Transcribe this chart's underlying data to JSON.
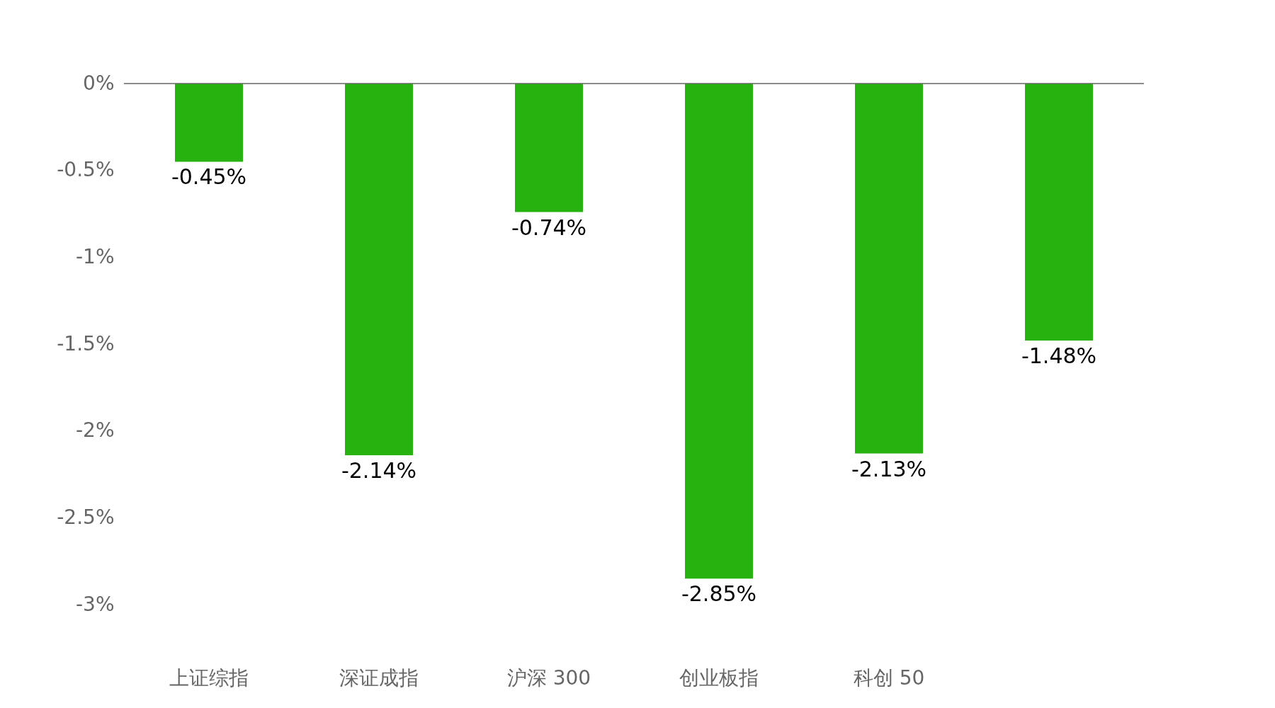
{
  "chart_data": {
    "type": "bar",
    "categories": [
      "上证综指",
      "深证成指",
      "沪深 300",
      "创业板指",
      "科创 50",
      null
    ],
    "values": [
      -0.45,
      -2.14,
      -0.74,
      -2.85,
      -2.13,
      -1.48
    ],
    "value_labels": [
      "-0.45%",
      "-2.14%",
      "-0.74%",
      "-2.85%",
      "-2.13%",
      "-1.48%"
    ],
    "color": "#27b20f",
    "ylim": [
      -3,
      0
    ],
    "yticks": [
      {
        "value": 0,
        "label": "0%"
      },
      {
        "value": -0.5,
        "label": "-0.5%"
      },
      {
        "value": -1,
        "label": "-1%"
      },
      {
        "value": -1.5,
        "label": "-1.5%"
      },
      {
        "value": -2,
        "label": "-2%"
      },
      {
        "value": -2.5,
        "label": "-2.5%"
      },
      {
        "value": -3,
        "label": "-3%"
      }
    ],
    "grid": false
  }
}
